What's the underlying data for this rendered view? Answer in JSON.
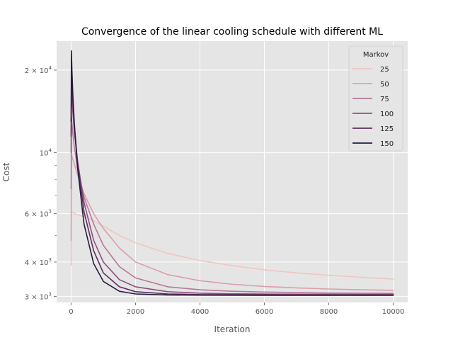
{
  "chart_data": {
    "type": "line",
    "title": "Convergence of the linear cooling schedule with different ML",
    "xlabel": "Iteration",
    "ylabel": "Cost",
    "xlim": [
      -450,
      10450
    ],
    "ylim": [
      2850,
      25500
    ],
    "yscale": "log",
    "grid": true,
    "x_ticks": [
      {
        "value": 0,
        "label": "0"
      },
      {
        "value": 2000,
        "label": "2000"
      },
      {
        "value": 4000,
        "label": "4000"
      },
      {
        "value": 6000,
        "label": "6000"
      },
      {
        "value": 8000,
        "label": "8000"
      },
      {
        "value": 10000,
        "label": "10000"
      }
    ],
    "y_major_ticks": [
      {
        "value": 3000,
        "mantissa": "3",
        "exponent": "3"
      },
      {
        "value": 4000,
        "mantissa": "4",
        "exponent": "3"
      },
      {
        "value": 6000,
        "mantissa": "6",
        "exponent": "3"
      },
      {
        "value": 10000,
        "mantissa": "",
        "exponent": "4"
      },
      {
        "value": 20000,
        "mantissa": "2",
        "exponent": "4"
      }
    ],
    "y_minor_ticks": [
      5000,
      7000,
      8000,
      9000
    ],
    "legend": {
      "title": "Markov",
      "location": "upper right"
    },
    "series": [
      {
        "name": "25",
        "color": "#f0c6c3",
        "x": [
          0,
          10,
          25,
          50,
          100,
          200,
          400,
          700,
          1000,
          1500,
          2000,
          3000,
          4000,
          5000,
          6000,
          7000,
          8000,
          9000,
          10000
        ],
        "y": [
          3900,
          6150,
          6100,
          6050,
          6000,
          5950,
          5850,
          5650,
          5400,
          5000,
          4700,
          4300,
          4050,
          3880,
          3750,
          3650,
          3580,
          3520,
          3470
        ]
      },
      {
        "name": "50",
        "color": "#d9a0ac",
        "x": [
          0,
          10,
          25,
          50,
          100,
          200,
          400,
          700,
          1000,
          1500,
          2000,
          3000,
          4000,
          5000,
          6000,
          7000,
          8000,
          9000,
          10000
        ],
        "y": [
          4800,
          9800,
          9700,
          9500,
          9100,
          8300,
          7100,
          6000,
          5300,
          4500,
          4000,
          3600,
          3420,
          3320,
          3260,
          3220,
          3190,
          3170,
          3155
        ]
      },
      {
        "name": "75",
        "color": "#b77898",
        "x": [
          0,
          10,
          25,
          50,
          100,
          200,
          400,
          700,
          1000,
          1500,
          2000,
          3000,
          4000,
          5000,
          6000,
          7000,
          8000,
          9000,
          10000
        ],
        "y": [
          7400,
          13500,
          12800,
          11800,
          10500,
          8800,
          6900,
          5500,
          4600,
          3850,
          3500,
          3250,
          3170,
          3130,
          3110,
          3095,
          3085,
          3080,
          3075
        ]
      },
      {
        "name": "100",
        "color": "#8e4f82",
        "x": [
          0,
          10,
          25,
          50,
          100,
          200,
          400,
          700,
          1000,
          1500,
          2000,
          3000,
          4000,
          5000,
          6000,
          7000,
          8000,
          9000,
          10000
        ],
        "y": [
          10000,
          17500,
          16000,
          14200,
          12000,
          9300,
          6600,
          4800,
          4000,
          3450,
          3250,
          3120,
          3080,
          3065,
          3058,
          3055,
          3053,
          3052,
          3050
        ]
      },
      {
        "name": "125",
        "color": "#5f2d60",
        "x": [
          0,
          10,
          25,
          50,
          100,
          200,
          400,
          700,
          1000,
          1500,
          2000,
          3000,
          4000,
          5000,
          6000,
          7000,
          8000,
          9000,
          10000
        ],
        "y": [
          11500,
          20500,
          18000,
          15500,
          12500,
          9200,
          6100,
          4400,
          3650,
          3250,
          3120,
          3060,
          3045,
          3040,
          3038,
          3037,
          3036,
          3035,
          3035
        ]
      },
      {
        "name": "150",
        "color": "#2a1b3c",
        "x": [
          0,
          10,
          25,
          50,
          100,
          200,
          400,
          700,
          1000,
          1500,
          2000,
          3000,
          4000,
          5000,
          6000,
          7000,
          8000,
          9000,
          10000
        ],
        "y": [
          13000,
          23500,
          20000,
          16500,
          12800,
          8800,
          5500,
          3950,
          3400,
          3130,
          3060,
          3035,
          3030,
          3028,
          3027,
          3026,
          3026,
          3025,
          3025
        ]
      }
    ]
  }
}
